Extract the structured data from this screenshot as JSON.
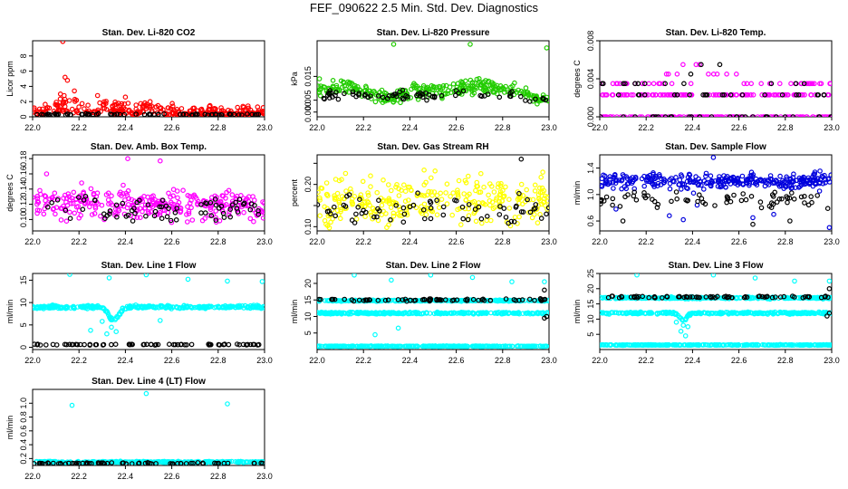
{
  "title": "FEF_090622  2.5 Min. Std. Dev. Diagnostics",
  "colors": {
    "red": "#ff0000",
    "green": "#22cc00",
    "magenta": "#ff00ff",
    "yellow": "#ffff00",
    "blue": "#0000dd",
    "cyan": "#00ffff",
    "black": "#000000"
  },
  "chart_data": [
    {
      "type": "scatter",
      "title": "Stan. Dev. Li-820 CO2",
      "xlabel": "",
      "ylabel": "Licor ppm",
      "xlim": [
        22.0,
        23.0
      ],
      "ylim": [
        0,
        10
      ],
      "xticks": [
        22.0,
        22.2,
        22.4,
        22.6,
        22.8,
        23.0
      ],
      "yticks": [
        0,
        2,
        4,
        6,
        8
      ],
      "series": [
        {
          "name": "colored",
          "color": "red",
          "baseline": 1.0,
          "spread": 0.7,
          "bumps": [
            [
              22.15,
              1.2,
              0.06
            ],
            [
              22.35,
              0.6,
              0.08
            ],
            [
              22.5,
              0.4,
              0.06
            ]
          ],
          "outliers": [
            [
              22.13,
              9.9
            ],
            [
              22.14,
              5.2
            ],
            [
              22.15,
              4.8
            ],
            [
              22.18,
              3.4
            ],
            [
              22.12,
              3.0
            ],
            [
              22.28,
              2.8
            ],
            [
              22.4,
              2.6
            ],
            [
              22.97,
              1.3
            ]
          ]
        },
        {
          "name": "black",
          "color": "black",
          "baseline": 0.3,
          "spread": 0.1,
          "bumps": [],
          "outliers": []
        }
      ]
    },
    {
      "type": "scatter",
      "title": "Stan. Dev. Li-820 Pressure",
      "xlabel": "",
      "ylabel": "kPa",
      "xlim": [
        22.0,
        23.0
      ],
      "ylim": [
        -0.002,
        0.03
      ],
      "xticks": [
        22.0,
        22.2,
        22.4,
        22.6,
        22.8,
        23.0
      ],
      "yticks": [
        0.0,
        0.005,
        0.015
      ],
      "ytick_labels": [
        "0.000",
        "0.005",
        "0.015"
      ],
      "series": [
        {
          "name": "colored",
          "color": "green",
          "baseline": 0.009,
          "spread": 0.003,
          "bumps": [
            [
              22.1,
              0.002,
              0.06
            ],
            [
              22.3,
              -0.003,
              0.08
            ],
            [
              22.7,
              0.002,
              0.1
            ],
            [
              22.95,
              -0.004,
              0.04
            ]
          ],
          "outliers": [
            [
              22.33,
              0.0285
            ],
            [
              22.66,
              0.0285
            ],
            [
              22.99,
              0.027
            ],
            [
              22.01,
              0.014
            ]
          ]
        },
        {
          "name": "black",
          "color": "black",
          "baseline": 0.007,
          "spread": 0.002,
          "bumps": [
            [
              22.95,
              -0.003,
              0.04
            ]
          ],
          "outliers": []
        }
      ]
    },
    {
      "type": "scatter",
      "title": "Stan. Dev. Li-820 Temp.",
      "xlabel": "",
      "ylabel": "degrees C",
      "xlim": [
        22.0,
        23.0
      ],
      "ylim": [
        0,
        0.008
      ],
      "xticks": [
        22.0,
        22.2,
        22.4,
        22.6,
        22.8,
        23.0
      ],
      "yticks": [
        0.0,
        0.004,
        0.008
      ],
      "ytick_labels": [
        "0.000",
        "0.004",
        "0.008"
      ],
      "levels": [
        0.0,
        0.0023,
        0.0035,
        0.0045,
        0.0055,
        0.0065,
        0.0075
      ],
      "series": [
        {
          "name": "colored",
          "color": "magenta",
          "baseline": 0.0023,
          "spread": 0.0,
          "bumps": [
            [
              22.45,
              0.004,
              0.12
            ]
          ],
          "outliers": []
        },
        {
          "name": "black",
          "color": "black",
          "baseline": 0.0023,
          "spread": 0.0,
          "bumps": [],
          "outliers": []
        }
      ]
    },
    {
      "type": "scatter",
      "title": "Stan. Dev. Amb. Box Temp.",
      "xlabel": "",
      "ylabel": "degrees C",
      "xlim": [
        22.0,
        23.0
      ],
      "ylim": [
        0.085,
        0.185
      ],
      "xticks": [
        22.0,
        22.2,
        22.4,
        22.6,
        22.8,
        23.0
      ],
      "yticks": [
        0.1,
        0.12,
        0.14,
        0.16,
        0.18
      ],
      "ytick_labels": [
        "0.10",
        "0.12",
        "0.14",
        "0.16",
        "0.18"
      ],
      "series": [
        {
          "name": "colored",
          "color": "magenta",
          "baseline": 0.12,
          "spread": 0.02,
          "bumps": [],
          "outliers": [
            [
              22.41,
              0.18
            ],
            [
              22.55,
              0.177
            ],
            [
              22.06,
              0.16
            ]
          ]
        },
        {
          "name": "black",
          "color": "black",
          "baseline": 0.115,
          "spread": 0.015,
          "bumps": [],
          "outliers": []
        }
      ]
    },
    {
      "type": "scatter",
      "title": "Stan. Dev. Gas Stream RH",
      "xlabel": "",
      "ylabel": "percent",
      "xlim": [
        22.0,
        23.0
      ],
      "ylim": [
        0.09,
        0.27
      ],
      "xticks": [
        22.0,
        22.2,
        22.4,
        22.6,
        22.8,
        23.0
      ],
      "yticks": [
        0.1,
        0.15,
        0.2,
        0.25
      ],
      "ytick_labels": [
        "0.10",
        "",
        "0.20",
        ""
      ],
      "series": [
        {
          "name": "colored",
          "color": "yellow",
          "baseline": 0.16,
          "spread": 0.055,
          "bumps": [],
          "outliers": []
        },
        {
          "name": "black",
          "color": "black",
          "baseline": 0.14,
          "spread": 0.04,
          "bumps": [],
          "outliers": [
            [
              22.88,
              0.26
            ]
          ]
        }
      ]
    },
    {
      "type": "scatter",
      "title": "Stan. Dev. Sample Flow",
      "xlabel": "",
      "ylabel": "ml/min",
      "xlim": [
        22.0,
        23.0
      ],
      "ylim": [
        0.45,
        1.6
      ],
      "xticks": [
        22.0,
        22.2,
        22.4,
        22.6,
        22.8,
        23.0
      ],
      "yticks": [
        0.6,
        1.0,
        1.4
      ],
      "ytick_labels": [
        "0.6",
        "1.0",
        "1.4"
      ],
      "series": [
        {
          "name": "colored",
          "color": "blue",
          "baseline": 1.2,
          "spread": 0.12,
          "bumps": [],
          "outliers": [
            [
              22.49,
              1.56
            ],
            [
              22.07,
              0.78
            ],
            [
              22.36,
              0.62
            ],
            [
              22.3,
              0.68
            ],
            [
              22.42,
              0.84
            ],
            [
              22.66,
              0.65
            ],
            [
              22.75,
              0.7
            ],
            [
              22.99,
              0.5
            ]
          ]
        },
        {
          "name": "black",
          "color": "black",
          "baseline": 0.93,
          "spread": 0.12,
          "bumps": [],
          "outliers": [
            [
              22.1,
              0.6
            ],
            [
              22.66,
              0.55
            ],
            [
              22.82,
              0.6
            ]
          ]
        }
      ]
    },
    {
      "type": "scatter",
      "title": "Stan. Dev. Line 1 Flow",
      "xlabel": "",
      "ylabel": "ml/min",
      "xlim": [
        22.0,
        23.0
      ],
      "ylim": [
        -0.5,
        16.5
      ],
      "xticks": [
        22.0,
        22.2,
        22.4,
        22.6,
        22.8,
        23.0
      ],
      "yticks": [
        0,
        5,
        10,
        15
      ],
      "series": [
        {
          "name": "colored",
          "color": "cyan",
          "baseline": 9.0,
          "spread": 0.35,
          "bumps": [
            [
              22.35,
              -3.0,
              0.03
            ]
          ],
          "outliers": [
            [
              22.16,
              16.3
            ],
            [
              22.25,
              3.8
            ],
            [
              22.3,
              5.8
            ],
            [
              22.32,
              3.0
            ],
            [
              22.34,
              4.5
            ],
            [
              22.36,
              3.5
            ],
            [
              22.49,
              16.2
            ],
            [
              22.55,
              6.0
            ],
            [
              22.67,
              15.2
            ],
            [
              22.84,
              14.8
            ],
            [
              22.99,
              14.7
            ],
            [
              22.33,
              15.5
            ]
          ]
        },
        {
          "name": "black",
          "color": "black",
          "baseline": 0.6,
          "spread": 0.1,
          "bumps": [],
          "outliers": []
        }
      ]
    },
    {
      "type": "scatter",
      "title": "Stan. Dev. Line 2 Flow",
      "xlabel": "",
      "ylabel": "ml/min",
      "xlim": [
        22.0,
        23.0
      ],
      "ylim": [
        0,
        23
      ],
      "xticks": [
        22.0,
        22.2,
        22.4,
        22.6,
        22.8,
        23.0
      ],
      "yticks": [
        5,
        10,
        15,
        20
      ],
      "series": [
        {
          "name": "cyan-upper",
          "color": "cyan",
          "baseline": 14.8,
          "spread": 0.2,
          "bumps": [],
          "outliers": [
            [
              22.98,
              20.5
            ]
          ]
        },
        {
          "name": "cyan-mid",
          "color": "cyan",
          "baseline": 11.0,
          "spread": 0.25,
          "bumps": [],
          "outliers": [
            [
              22.16,
              22.5
            ],
            [
              22.32,
              21.0
            ],
            [
              22.49,
              22.5
            ],
            [
              22.67,
              21.8
            ],
            [
              22.84,
              20.5
            ],
            [
              22.35,
              6.5
            ],
            [
              22.25,
              4.5
            ]
          ]
        },
        {
          "name": "cyan-low",
          "color": "cyan",
          "baseline": 1.0,
          "spread": 0.1,
          "bumps": [],
          "outliers": []
        },
        {
          "name": "black",
          "color": "black",
          "baseline": 15.0,
          "spread": 0.3,
          "bumps": [],
          "outliers": [
            [
              22.98,
              18.0
            ],
            [
              22.98,
              9.5
            ],
            [
              22.99,
              10.0
            ]
          ]
        }
      ]
    },
    {
      "type": "scatter",
      "title": "Stan. Dev. Line 3 Flow",
      "xlabel": "",
      "ylabel": "ml/min",
      "xlim": [
        22.0,
        23.0
      ],
      "ylim": [
        0,
        25
      ],
      "xticks": [
        22.0,
        22.2,
        22.4,
        22.6,
        22.8,
        23.0
      ],
      "yticks": [
        5,
        10,
        15,
        20,
        25
      ],
      "series": [
        {
          "name": "cyan-upper",
          "color": "cyan",
          "baseline": 17.0,
          "spread": 0.3,
          "bumps": [],
          "outliers": [
            [
              22.99,
              22.5
            ]
          ]
        },
        {
          "name": "cyan-mid",
          "color": "cyan",
          "baseline": 12.0,
          "spread": 0.3,
          "bumps": [
            [
              22.36,
              -2.5,
              0.02
            ]
          ],
          "outliers": [
            [
              22.35,
              6.0
            ],
            [
              22.36,
              8.0
            ],
            [
              22.37,
              4.5
            ],
            [
              22.38,
              7.5
            ],
            [
              22.33,
              9.0
            ],
            [
              22.16,
              24.5
            ],
            [
              22.49,
              24.5
            ],
            [
              22.67,
              23.5
            ],
            [
              22.84,
              22.5
            ]
          ]
        },
        {
          "name": "cyan-low",
          "color": "cyan",
          "baseline": 1.5,
          "spread": 0.1,
          "bumps": [],
          "outliers": []
        },
        {
          "name": "black",
          "color": "black",
          "baseline": 17.3,
          "spread": 0.3,
          "bumps": [],
          "outliers": [
            [
              22.99,
              20.0
            ],
            [
              22.99,
              12.0
            ],
            [
              22.98,
              11.0
            ]
          ]
        }
      ]
    },
    {
      "type": "scatter",
      "title": "Stan. Dev. Line 4 (LT) Flow",
      "xlabel": "",
      "ylabel": "ml/min",
      "xlim": [
        22.0,
        23.0
      ],
      "ylim": [
        0.1,
        1.2
      ],
      "xticks": [
        22.0,
        22.2,
        22.4,
        22.6,
        22.8,
        23.0
      ],
      "yticks": [
        0.2,
        0.4,
        0.6,
        0.8,
        1.0
      ],
      "ytick_labels": [
        "0.2",
        "0.4",
        "0.6",
        "0.8",
        "1.0"
      ],
      "series": [
        {
          "name": "colored",
          "color": "cyan",
          "baseline": 0.15,
          "spread": 0.01,
          "bumps": [],
          "outliers": [
            [
              22.49,
              1.14
            ],
            [
              22.17,
              0.97
            ],
            [
              22.84,
              0.99
            ]
          ]
        },
        {
          "name": "black",
          "color": "black",
          "baseline": 0.13,
          "spread": 0.01,
          "bumps": [],
          "outliers": []
        }
      ]
    }
  ]
}
